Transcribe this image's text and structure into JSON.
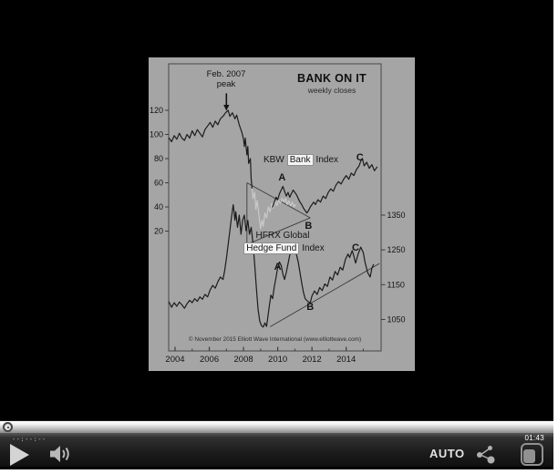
{
  "player": {
    "elapsed_time": "--:--:--",
    "duration": "01:43",
    "quality_label": "AUTO",
    "icons": {
      "play": "play-icon",
      "volume": "speaker-icon",
      "share": "share-icon",
      "popout": "popout-window-icon",
      "seek_handle": "seek-handle-knob"
    },
    "colors": {
      "stage": "#000000",
      "controls_text": "#e2e2e2",
      "icon_gray": "#b5b5b5"
    }
  },
  "chart_data": {
    "type": "line",
    "title": "BANK ON IT",
    "subtitle": "weekly closes",
    "annotation": {
      "line1": "Feb. 2007",
      "line2": "peak"
    },
    "series_labels": {
      "kbw": {
        "pre": "KBW",
        "highlight": "Bank",
        "post": "Index"
      },
      "hfrx": {
        "line1": "HFRX Global",
        "highlight": "Hedge Fund",
        "post": "Index"
      }
    },
    "x_axis": {
      "major_ticks": [
        2004,
        2006,
        2008,
        2010,
        2012,
        2014
      ],
      "range": [
        2003.6,
        2016.0
      ]
    },
    "left_axis": {
      "series": "KBW Bank Index",
      "ticks": [
        120,
        100,
        80,
        60,
        40,
        20
      ]
    },
    "right_axis": {
      "series": "HFRX Global Hedge Fund Index",
      "ticks": [
        1350,
        1250,
        1150,
        1050
      ]
    },
    "wave_labels": [
      {
        "text": "A",
        "axis": "left",
        "year": 2010.25,
        "value": 64
      },
      {
        "text": "B",
        "axis": "left",
        "year": 2011.8,
        "value": 24
      },
      {
        "text": "C",
        "axis": "left",
        "year": 2014.8,
        "value": 81
      },
      {
        "text": "A",
        "axis": "right",
        "year": 2010.0,
        "value": 1200
      },
      {
        "text": "B",
        "axis": "right",
        "year": 2011.9,
        "value": 1085
      },
      {
        "text": "C",
        "axis": "right",
        "year": 2014.55,
        "value": 1256
      }
    ],
    "peak_arrow": {
      "axis": "left",
      "year": 2007.0,
      "from_value": 134,
      "to_value": 123
    },
    "trendlines": [
      {
        "axis": "left",
        "from": [
          2008.2,
          60
        ],
        "to": [
          2008.2,
          9
        ]
      },
      {
        "axis": "left",
        "from": [
          2008.2,
          60
        ],
        "to": [
          2011.9,
          31
        ]
      },
      {
        "axis": "left",
        "from": [
          2008.2,
          9
        ],
        "to": [
          2011.9,
          31
        ]
      },
      {
        "axis": "right",
        "from": [
          2009.55,
          1029
        ],
        "to": [
          2015.95,
          1211
        ]
      }
    ],
    "series": [
      {
        "name": "KBW Bank Index (2004 - 2008 decline)",
        "axis": "left",
        "color": "#1c1c1c",
        "points": [
          [
            2003.65,
            97
          ],
          [
            2003.8,
            94
          ],
          [
            2003.95,
            99
          ],
          [
            2004.1,
            96
          ],
          [
            2004.25,
            101
          ],
          [
            2004.4,
            97
          ],
          [
            2004.55,
            95
          ],
          [
            2004.7,
            100
          ],
          [
            2004.85,
            97
          ],
          [
            2005.0,
            103
          ],
          [
            2005.15,
            99
          ],
          [
            2005.3,
            104
          ],
          [
            2005.45,
            101
          ],
          [
            2005.6,
            98
          ],
          [
            2005.75,
            104
          ],
          [
            2005.9,
            107
          ],
          [
            2006.05,
            110
          ],
          [
            2006.2,
            106
          ],
          [
            2006.35,
            111
          ],
          [
            2006.5,
            108
          ],
          [
            2006.65,
            113
          ],
          [
            2006.8,
            115
          ],
          [
            2006.95,
            118
          ],
          [
            2007.1,
            120
          ],
          [
            2007.2,
            115
          ],
          [
            2007.35,
            118
          ],
          [
            2007.5,
            113
          ],
          [
            2007.6,
            116
          ],
          [
            2007.75,
            108
          ],
          [
            2007.9,
            102
          ],
          [
            2008.0,
            96
          ],
          [
            2008.05,
            90
          ],
          [
            2008.1,
            97
          ],
          [
            2008.2,
            83
          ],
          [
            2008.25,
            90
          ],
          [
            2008.3,
            76
          ],
          [
            2008.4,
            80
          ],
          [
            2008.45,
            63
          ],
          [
            2008.5,
            55
          ]
        ]
      },
      {
        "name": "KBW Bank Index (crisis segment, gray)",
        "axis": "left",
        "color": "#c9c9c9",
        "points": [
          [
            2008.5,
            55
          ],
          [
            2008.55,
            47
          ],
          [
            2008.65,
            52
          ],
          [
            2008.72,
            38
          ],
          [
            2008.8,
            45
          ],
          [
            2008.9,
            33
          ],
          [
            2009.0,
            22
          ],
          [
            2009.08,
            29
          ],
          [
            2009.15,
            24
          ],
          [
            2009.25,
            35
          ],
          [
            2009.35,
            31
          ],
          [
            2009.45,
            40
          ],
          [
            2009.55,
            36
          ],
          [
            2009.65,
            43
          ],
          [
            2009.75,
            39
          ],
          [
            2009.85,
            45
          ],
          [
            2009.95,
            41
          ],
          [
            2010.05,
            46
          ],
          [
            2010.15,
            43
          ],
          [
            2010.25,
            47
          ],
          [
            2010.35,
            44
          ],
          [
            2010.45,
            47
          ],
          [
            2010.55,
            42
          ],
          [
            2010.65,
            45
          ],
          [
            2010.75,
            41
          ],
          [
            2010.85,
            44
          ],
          [
            2010.95,
            40
          ],
          [
            2011.05,
            42
          ]
        ]
      },
      {
        "name": "KBW Bank Index (A-B-C recovery)",
        "axis": "left",
        "color": "#1c1c1c",
        "points": [
          [
            2009.7,
            40
          ],
          [
            2009.8,
            44
          ],
          [
            2009.9,
            48
          ],
          [
            2010.0,
            46
          ],
          [
            2010.1,
            51
          ],
          [
            2010.2,
            54
          ],
          [
            2010.3,
            57
          ],
          [
            2010.4,
            53
          ],
          [
            2010.5,
            49
          ],
          [
            2010.6,
            52
          ],
          [
            2010.7,
            48
          ],
          [
            2010.8,
            51
          ],
          [
            2010.9,
            54
          ],
          [
            2011.0,
            52
          ],
          [
            2011.1,
            50
          ],
          [
            2011.2,
            47
          ],
          [
            2011.3,
            44
          ],
          [
            2011.4,
            42
          ],
          [
            2011.5,
            39
          ],
          [
            2011.6,
            37
          ],
          [
            2011.7,
            35
          ],
          [
            2011.8,
            37
          ],
          [
            2011.9,
            40
          ],
          [
            2012.0,
            42
          ],
          [
            2012.1,
            44
          ],
          [
            2012.2,
            42
          ],
          [
            2012.35,
            46
          ],
          [
            2012.5,
            44
          ],
          [
            2012.65,
            49
          ],
          [
            2012.8,
            47
          ],
          [
            2012.95,
            52
          ],
          [
            2013.1,
            55
          ],
          [
            2013.25,
            53
          ],
          [
            2013.4,
            58
          ],
          [
            2013.55,
            61
          ],
          [
            2013.7,
            59
          ],
          [
            2013.85,
            63
          ],
          [
            2014.0,
            66
          ],
          [
            2014.15,
            63
          ],
          [
            2014.3,
            68
          ],
          [
            2014.45,
            66
          ],
          [
            2014.6,
            71
          ],
          [
            2014.75,
            74
          ],
          [
            2014.85,
            78
          ],
          [
            2014.95,
            80
          ],
          [
            2015.05,
            74
          ],
          [
            2015.2,
            77
          ],
          [
            2015.35,
            72
          ],
          [
            2015.5,
            75
          ],
          [
            2015.65,
            70
          ],
          [
            2015.8,
            73
          ]
        ]
      },
      {
        "name": "HFRX Global Hedge Fund Index",
        "axis": "right",
        "color": "#1c1c1c",
        "points": [
          [
            2003.65,
            1100
          ],
          [
            2003.8,
            1085
          ],
          [
            2003.95,
            1098
          ],
          [
            2004.1,
            1088
          ],
          [
            2004.25,
            1100
          ],
          [
            2004.4,
            1092
          ],
          [
            2004.55,
            1082
          ],
          [
            2004.7,
            1095
          ],
          [
            2004.85,
            1105
          ],
          [
            2005.0,
            1098
          ],
          [
            2005.15,
            1110
          ],
          [
            2005.3,
            1102
          ],
          [
            2005.45,
            1115
          ],
          [
            2005.6,
            1108
          ],
          [
            2005.75,
            1122
          ],
          [
            2005.9,
            1115
          ],
          [
            2006.05,
            1135
          ],
          [
            2006.2,
            1148
          ],
          [
            2006.35,
            1140
          ],
          [
            2006.5,
            1158
          ],
          [
            2006.65,
            1172
          ],
          [
            2006.8,
            1165
          ],
          [
            2006.9,
            1190
          ],
          [
            2007.0,
            1225
          ],
          [
            2007.1,
            1265
          ],
          [
            2007.2,
            1305
          ],
          [
            2007.3,
            1345
          ],
          [
            2007.4,
            1380
          ],
          [
            2007.5,
            1335
          ],
          [
            2007.55,
            1360
          ],
          [
            2007.65,
            1315
          ],
          [
            2007.75,
            1350
          ],
          [
            2007.85,
            1295
          ],
          [
            2007.95,
            1335
          ],
          [
            2008.05,
            1350
          ],
          [
            2008.15,
            1305
          ],
          [
            2008.25,
            1335
          ],
          [
            2008.35,
            1295
          ],
          [
            2008.45,
            1315
          ],
          [
            2008.55,
            1270
          ],
          [
            2008.65,
            1210
          ],
          [
            2008.75,
            1140
          ],
          [
            2008.85,
            1080
          ],
          [
            2008.95,
            1045
          ],
          [
            2009.05,
            1032
          ],
          [
            2009.15,
            1028
          ],
          [
            2009.25,
            1040
          ],
          [
            2009.35,
            1030
          ],
          [
            2009.5,
            1085
          ],
          [
            2009.6,
            1120
          ],
          [
            2009.7,
            1110
          ],
          [
            2009.8,
            1145
          ],
          [
            2009.9,
            1170
          ],
          [
            2010.0,
            1200
          ],
          [
            2010.1,
            1215
          ],
          [
            2010.2,
            1205
          ],
          [
            2010.3,
            1180
          ],
          [
            2010.4,
            1165
          ],
          [
            2010.5,
            1185
          ],
          [
            2010.6,
            1210
          ],
          [
            2010.7,
            1235
          ],
          [
            2010.8,
            1248
          ],
          [
            2010.9,
            1240
          ],
          [
            2011.0,
            1252
          ],
          [
            2011.1,
            1235
          ],
          [
            2011.2,
            1215
          ],
          [
            2011.3,
            1185
          ],
          [
            2011.4,
            1155
          ],
          [
            2011.5,
            1128
          ],
          [
            2011.6,
            1110
          ],
          [
            2011.75,
            1102
          ],
          [
            2011.9,
            1098
          ],
          [
            2012.0,
            1118
          ],
          [
            2012.15,
            1132
          ],
          [
            2012.3,
            1122
          ],
          [
            2012.45,
            1142
          ],
          [
            2012.6,
            1133
          ],
          [
            2012.75,
            1152
          ],
          [
            2012.9,
            1145
          ],
          [
            2013.05,
            1172
          ],
          [
            2013.2,
            1163
          ],
          [
            2013.35,
            1188
          ],
          [
            2013.5,
            1178
          ],
          [
            2013.65,
            1200
          ],
          [
            2013.8,
            1192
          ],
          [
            2013.95,
            1222
          ],
          [
            2014.1,
            1238
          ],
          [
            2014.2,
            1228
          ],
          [
            2014.35,
            1248
          ],
          [
            2014.45,
            1232
          ],
          [
            2014.55,
            1212
          ],
          [
            2014.7,
            1238
          ],
          [
            2014.85,
            1258
          ],
          [
            2015.0,
            1242
          ],
          [
            2015.1,
            1215
          ],
          [
            2015.25,
            1185
          ],
          [
            2015.4,
            1172
          ],
          [
            2015.5,
            1198
          ],
          [
            2015.6,
            1208
          ]
        ]
      }
    ],
    "copyright": "© November 2015 Elliott Wave International (www.elliottwave.com)",
    "background_color": "#a5a5a5",
    "grid": false,
    "legend_position": "inline-labels"
  }
}
